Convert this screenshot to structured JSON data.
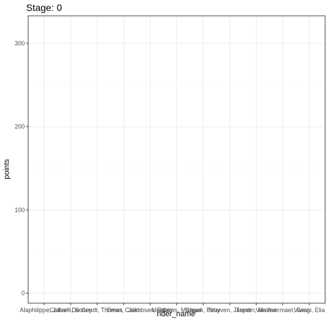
{
  "chart_data": {
    "type": "bar",
    "title": "Stage: 0",
    "xlabel": "rider_name",
    "ylabel": "points",
    "categories": [
      "Alaphilippe, Julian",
      "Colbrelli, Sonny",
      "De Gendt, Thomas",
      "Ewan, Caleb",
      "Jakobsen, Fabio",
      "Matthews, Michael",
      "Sagan, Peter",
      "Stuyven, Jasper",
      "Trentin, Matteo",
      "Van Avermaet, Greg",
      "Viviani, Elia"
    ],
    "values": [
      0,
      0,
      0,
      0,
      0,
      0,
      0,
      0,
      0,
      0,
      0
    ],
    "ylim": [
      -12,
      333
    ],
    "yticks": [
      0,
      100,
      200,
      300
    ],
    "ytick_labels": [
      "0",
      "100",
      "200",
      "300"
    ],
    "grid": true,
    "theme": "bw",
    "colors": {
      "panel_border": "#333333",
      "grid_major": "#ebebeb",
      "grid_minor": "#f5f5f5",
      "tick_text": "#4d4d4d",
      "text": "#000000"
    }
  }
}
